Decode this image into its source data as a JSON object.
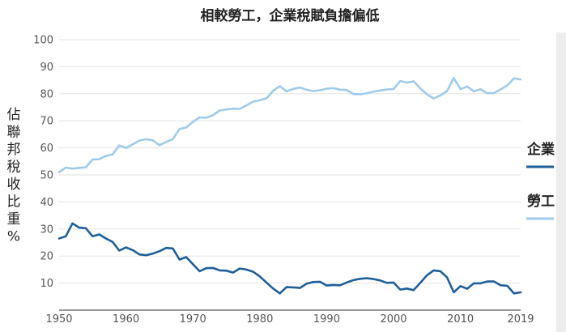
{
  "chart_data": {
    "type": "line",
    "title": "相較勞工，企業稅賦負擔偏低",
    "ylabel": "佔聯邦稅收比重%",
    "xlabel": "",
    "xlim": [
      1950,
      2019
    ],
    "ylim": [
      0,
      100
    ],
    "x_ticks": [
      "1950",
      "1960",
      "1970",
      "1980",
      "1990",
      "2000",
      "2010",
      "2019"
    ],
    "y_ticks": [
      "100",
      "90",
      "80",
      "70",
      "60",
      "50",
      "40",
      "30",
      "20",
      "10"
    ],
    "grid": true,
    "legend_position": "right",
    "series": [
      {
        "name": "企業",
        "color": "#1f5f9a",
        "x": [
          1950,
          1951,
          1952,
          1953,
          1954,
          1955,
          1956,
          1957,
          1958,
          1959,
          1960,
          1961,
          1962,
          1963,
          1964,
          1965,
          1966,
          1967,
          1968,
          1969,
          1970,
          1971,
          1972,
          1973,
          1974,
          1975,
          1976,
          1977,
          1978,
          1979,
          1980,
          1981,
          1982,
          1983,
          1984,
          1985,
          1986,
          1987,
          1988,
          1989,
          1990,
          1991,
          1992,
          1993,
          1994,
          1995,
          1996,
          1997,
          1998,
          1999,
          2000,
          2001,
          2002,
          2003,
          2004,
          2005,
          2006,
          2007,
          2008,
          2009,
          2010,
          2011,
          2012,
          2013,
          2014,
          2015,
          2016,
          2017,
          2018,
          2019
        ],
        "values": [
          26.5,
          27.3,
          32.1,
          30.5,
          30.3,
          27.3,
          28.0,
          26.5,
          25.2,
          22.0,
          23.2,
          22.2,
          20.6,
          20.3,
          20.9,
          21.8,
          23.0,
          22.8,
          18.7,
          19.6,
          17.0,
          14.4,
          15.5,
          15.6,
          14.7,
          14.6,
          13.9,
          15.4,
          15.0,
          14.2,
          12.5,
          10.2,
          8.0,
          6.2,
          8.5,
          8.4,
          8.2,
          9.8,
          10.4,
          10.5,
          9.1,
          9.3,
          9.2,
          10.2,
          11.1,
          11.6,
          11.8,
          11.5,
          11.0,
          10.1,
          10.2,
          7.6,
          8.0,
          7.4,
          10.1,
          12.9,
          14.7,
          14.4,
          12.1,
          6.6,
          8.9,
          7.9,
          9.9,
          9.9,
          10.6,
          10.6,
          9.2,
          9.0,
          6.2,
          6.6
        ]
      },
      {
        "name": "勞工",
        "color": "#9fcbeb",
        "x": [
          1950,
          1951,
          1952,
          1953,
          1954,
          1955,
          1956,
          1957,
          1958,
          1959,
          1960,
          1961,
          1962,
          1963,
          1964,
          1965,
          1966,
          1967,
          1968,
          1969,
          1970,
          1971,
          1972,
          1973,
          1974,
          1975,
          1976,
          1977,
          1978,
          1979,
          1980,
          1981,
          1982,
          1983,
          1984,
          1985,
          1986,
          1987,
          1988,
          1989,
          1990,
          1991,
          1992,
          1993,
          1994,
          1995,
          1996,
          1997,
          1998,
          1999,
          2000,
          2001,
          2002,
          2003,
          2004,
          2005,
          2006,
          2007,
          2008,
          2009,
          2010,
          2011,
          2012,
          2013,
          2014,
          2015,
          2016,
          2017,
          2018,
          2019
        ],
        "values": [
          51.0,
          52.7,
          52.3,
          52.6,
          52.8,
          55.7,
          55.8,
          57.0,
          57.6,
          60.9,
          60.0,
          61.3,
          62.7,
          63.2,
          62.8,
          61.0,
          62.2,
          63.2,
          67.0,
          67.5,
          69.6,
          71.3,
          71.1,
          72.1,
          73.8,
          74.2,
          74.5,
          74.4,
          75.7,
          77.1,
          77.6,
          78.3,
          81.1,
          82.8,
          80.9,
          81.8,
          82.3,
          81.5,
          81.0,
          81.3,
          81.9,
          82.1,
          81.5,
          81.4,
          79.9,
          79.8,
          80.2,
          80.8,
          81.2,
          81.6,
          81.7,
          84.7,
          84.1,
          84.6,
          82.0,
          79.8,
          78.3,
          79.4,
          81.0,
          85.8,
          81.7,
          82.7,
          80.9,
          81.7,
          80.2,
          80.3,
          81.6,
          83.1,
          85.7,
          85.3
        ]
      }
    ]
  }
}
